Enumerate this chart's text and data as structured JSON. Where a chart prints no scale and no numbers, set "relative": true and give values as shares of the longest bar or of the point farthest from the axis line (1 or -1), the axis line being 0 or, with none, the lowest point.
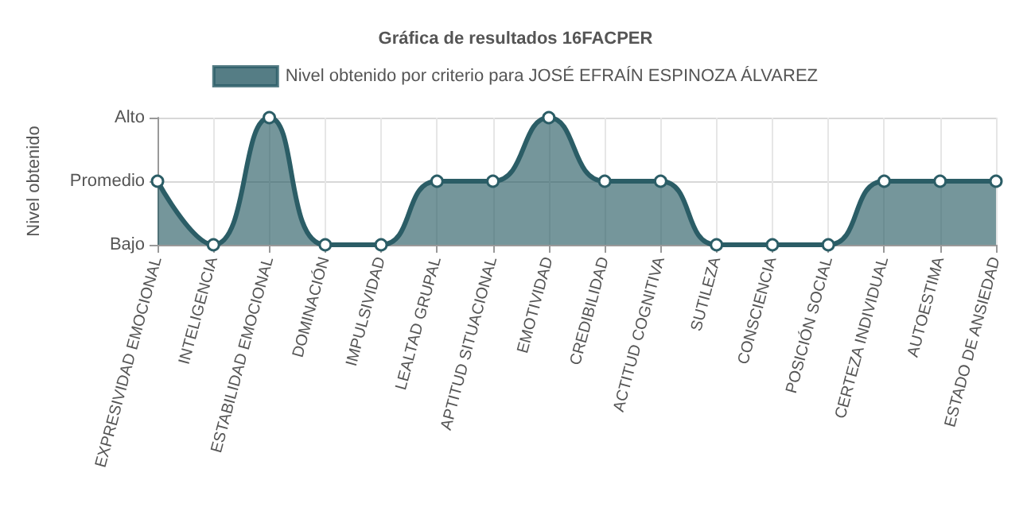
{
  "chart_data": {
    "type": "area",
    "title": "Gráfica de resultados 16FACPER",
    "ylabel": "Nivel obtenido",
    "categories": [
      "EXPRESIVIDAD EMOCIONAL",
      "INTELIGENCIA",
      "ESTABILIDAD EMOCIONAL",
      "DOMINACIÓN",
      "IMPULSIVIDAD",
      "LEALTAD GRUPAL",
      "APTITUD SITUACIONAL",
      "EMOTIVIDAD",
      "CREDIBILIDAD",
      "ACTITUD COGNITIVA",
      "SUTILEZA",
      "CONSCIENCIA",
      "POSICIÓN SOCIAL",
      "CERTEZA INDIVIDUAL",
      "AUTOESTIMA",
      "ESTADO DE ANSIEDAD"
    ],
    "series": [
      {
        "name": "Nivel obtenido por criterio para JOSÉ EFRAÍN ESPINOZA ÁLVAREZ",
        "color": "#2b5d66",
        "values": [
          0.5,
          0,
          1,
          0,
          0,
          0.5,
          0.5,
          1,
          0.5,
          0.5,
          0,
          0,
          0,
          0.5,
          0.5,
          0.5
        ]
      }
    ],
    "relative": true,
    "annotations": [
      "Bajo",
      "Promedio",
      "Alto"
    ],
    "grid": true,
    "legend": "top",
    "marker": "circle",
    "line_style": "solid"
  }
}
